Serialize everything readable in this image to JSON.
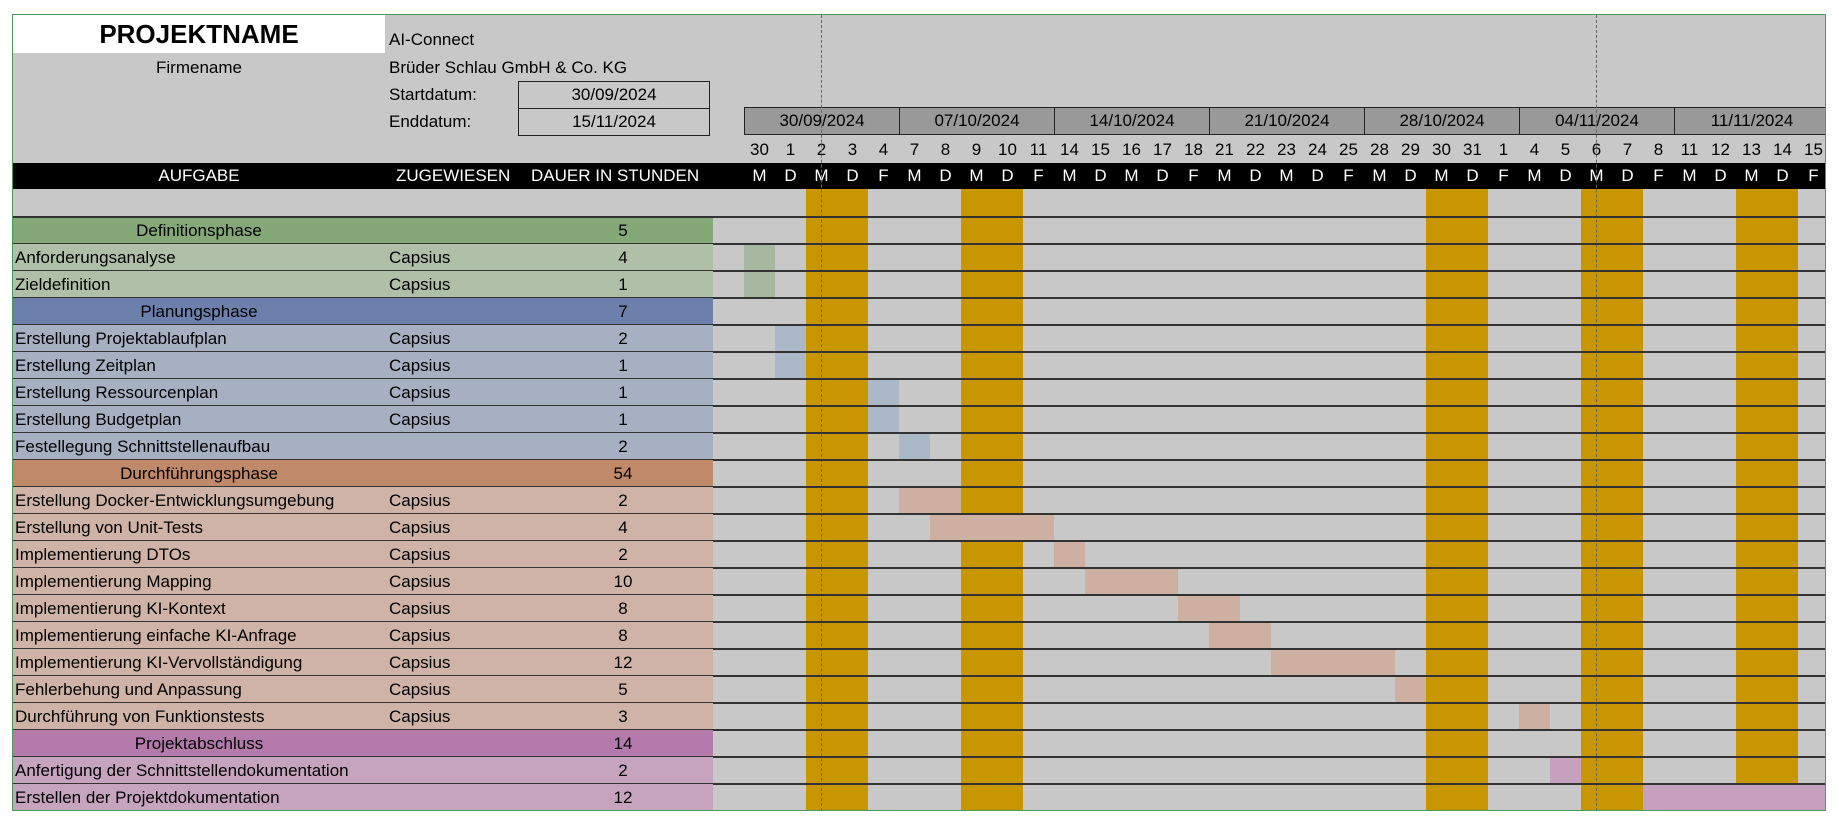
{
  "header": {
    "project_title": "PROJEKTNAME",
    "company_label": "Firmename",
    "project_value": "AI-Connect",
    "company_value": "Brüder Schlau GmbH & Co. KG",
    "start_label": "Startdatum:",
    "start_value": "30/09/2024",
    "end_label": "Enddatum:",
    "end_value": "15/11/2024"
  },
  "columns": {
    "task": "AUFGABE",
    "assigned": "ZUGEWIESEN",
    "duration": "DAUER IN STUNDEN"
  },
  "weeks": [
    "30/09/2024",
    "07/10/2024",
    "14/10/2024",
    "21/10/2024",
    "28/10/2024",
    "04/11/2024",
    "11/11/2024"
  ],
  "days": [
    {
      "n": "30",
      "d": "M",
      "we": false
    },
    {
      "n": "1",
      "d": "D",
      "we": false
    },
    {
      "n": "2",
      "d": "M",
      "we": true
    },
    {
      "n": "3",
      "d": "D",
      "we": true
    },
    {
      "n": "4",
      "d": "F",
      "we": false
    },
    {
      "n": "7",
      "d": "M",
      "we": false
    },
    {
      "n": "8",
      "d": "D",
      "we": false
    },
    {
      "n": "9",
      "d": "M",
      "we": true
    },
    {
      "n": "10",
      "d": "D",
      "we": true
    },
    {
      "n": "11",
      "d": "F",
      "we": false
    },
    {
      "n": "14",
      "d": "M",
      "we": false
    },
    {
      "n": "15",
      "d": "D",
      "we": false
    },
    {
      "n": "16",
      "d": "M",
      "we": false
    },
    {
      "n": "17",
      "d": "D",
      "we": false
    },
    {
      "n": "18",
      "d": "F",
      "we": false
    },
    {
      "n": "21",
      "d": "M",
      "we": false
    },
    {
      "n": "22",
      "d": "D",
      "we": false
    },
    {
      "n": "23",
      "d": "M",
      "we": false
    },
    {
      "n": "24",
      "d": "D",
      "we": false
    },
    {
      "n": "25",
      "d": "F",
      "we": false
    },
    {
      "n": "28",
      "d": "M",
      "we": false
    },
    {
      "n": "29",
      "d": "D",
      "we": false
    },
    {
      "n": "30",
      "d": "M",
      "we": true
    },
    {
      "n": "31",
      "d": "D",
      "we": true
    },
    {
      "n": "1",
      "d": "F",
      "we": false
    },
    {
      "n": "4",
      "d": "M",
      "we": false
    },
    {
      "n": "5",
      "d": "D",
      "we": false
    },
    {
      "n": "6",
      "d": "M",
      "we": true
    },
    {
      "n": "7",
      "d": "D",
      "we": true
    },
    {
      "n": "8",
      "d": "F",
      "we": false
    },
    {
      "n": "11",
      "d": "M",
      "we": false
    },
    {
      "n": "12",
      "d": "D",
      "we": false
    },
    {
      "n": "13",
      "d": "M",
      "we": true
    },
    {
      "n": "14",
      "d": "D",
      "we": true
    },
    {
      "n": "15",
      "d": "F",
      "we": false
    }
  ],
  "colors": {
    "def_phase": "#84a878",
    "def_task": "#afbfa8",
    "def_bar": "#a8b8a0",
    "plan_phase": "#6d7fab",
    "plan_task": "#a7b0c3",
    "plan_bar": "#aab8c8",
    "dur_phase": "#c0896a",
    "dur_task": "#cfb3a6",
    "dur_bar": "#cdb0a2",
    "end_phase": "#b47aab",
    "end_task": "#c6a4be",
    "end_bar": "#c6a0bf"
  },
  "rows": [
    {
      "type": "phase",
      "group": "def",
      "name": "Definitionsphase",
      "assigned": "",
      "duration": "5",
      "bar": null
    },
    {
      "type": "task",
      "group": "def",
      "name": "Anforderungsanalyse",
      "assigned": "Capsius",
      "duration": "4",
      "bar": [
        0,
        1
      ]
    },
    {
      "type": "task",
      "group": "def",
      "name": "Zieldefinition",
      "assigned": "Capsius",
      "duration": "1",
      "bar": [
        0,
        1
      ]
    },
    {
      "type": "phase",
      "group": "plan",
      "name": "Planungsphase",
      "assigned": "",
      "duration": "7",
      "bar": null
    },
    {
      "type": "task",
      "group": "plan",
      "name": "Erstellung Projektablaufplan",
      "assigned": "Capsius",
      "duration": "2",
      "bar": [
        1,
        1
      ]
    },
    {
      "type": "task",
      "group": "plan",
      "name": "Erstellung Zeitplan",
      "assigned": "Capsius",
      "duration": "1",
      "bar": [
        1,
        1
      ]
    },
    {
      "type": "task",
      "group": "plan",
      "name": "Erstellung Ressourcenplan",
      "assigned": "Capsius",
      "duration": "1",
      "bar": [
        4,
        1
      ]
    },
    {
      "type": "task",
      "group": "plan",
      "name": "Erstellung Budgetplan",
      "assigned": "Capsius",
      "duration": "1",
      "bar": [
        4,
        1
      ]
    },
    {
      "type": "task",
      "group": "plan",
      "name": "Festellegung Schnittstellenaufbau",
      "assigned": "",
      "duration": "2",
      "bar": [
        5,
        1
      ]
    },
    {
      "type": "phase",
      "group": "dur",
      "name": "Durchführungsphase",
      "assigned": "",
      "duration": "54",
      "bar": null
    },
    {
      "type": "task",
      "group": "dur",
      "name": "Erstellung Docker-Entwicklungsumgebung",
      "assigned": "Capsius",
      "duration": "2",
      "bar": [
        5,
        2
      ]
    },
    {
      "type": "task",
      "group": "dur",
      "name": "Erstellung von Unit-Tests",
      "assigned": "Capsius",
      "duration": "4",
      "bar": [
        6,
        4
      ]
    },
    {
      "type": "task",
      "group": "dur",
      "name": "Implementierung DTOs",
      "assigned": "Capsius",
      "duration": "2",
      "bar": [
        10,
        1
      ]
    },
    {
      "type": "task",
      "group": "dur",
      "name": "Implementierung Mapping",
      "assigned": "Capsius",
      "duration": "10",
      "bar": [
        11,
        3
      ]
    },
    {
      "type": "task",
      "group": "dur",
      "name": "Implementierung KI-Kontext",
      "assigned": "Capsius",
      "duration": "8",
      "bar": [
        14,
        2
      ]
    },
    {
      "type": "task",
      "group": "dur",
      "name": "Implementierung einfache KI-Anfrage",
      "assigned": "Capsius",
      "duration": "8",
      "bar": [
        15,
        2
      ]
    },
    {
      "type": "task",
      "group": "dur",
      "name": " Implementierung KI-Vervollständigung",
      "assigned": "Capsius",
      "duration": "12",
      "bar": [
        17,
        4
      ]
    },
    {
      "type": "task",
      "group": "dur",
      "name": "Fehlerbehung und Anpassung",
      "assigned": "Capsius",
      "duration": "5",
      "bar": [
        21,
        1
      ]
    },
    {
      "type": "task",
      "group": "dur",
      "name": "Durchführung von Funktionstests",
      "assigned": "Capsius",
      "duration": "3",
      "bar": [
        25,
        1
      ]
    },
    {
      "type": "phase",
      "group": "end",
      "name": "Projektabschluss",
      "assigned": "",
      "duration": "14",
      "bar": null
    },
    {
      "type": "task",
      "group": "end",
      "name": "Anfertigung der Schnittstellendokumentation",
      "assigned": "",
      "duration": "2",
      "bar": [
        26,
        1
      ]
    },
    {
      "type": "task",
      "group": "end",
      "name": "Erstellen der Projektdokumentation",
      "assigned": "",
      "duration": "12",
      "bar": [
        29,
        6
      ]
    }
  ]
}
